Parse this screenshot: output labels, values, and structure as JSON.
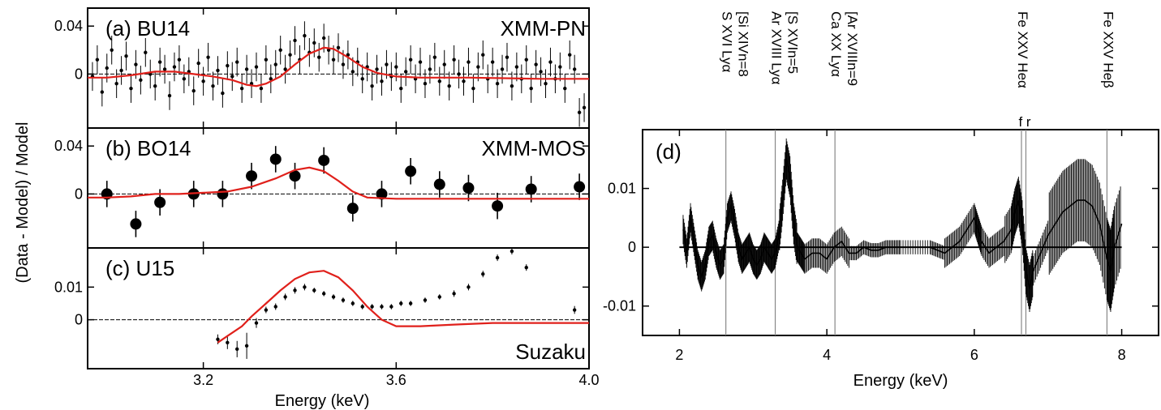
{
  "chart_data": [
    {
      "id": "a",
      "type": "scatter",
      "panel_label": "(a) BU14",
      "instrument": "XMM-PN",
      "ylabel": "(Data - Model) / Model",
      "xlim": [
        2.96,
        4.0
      ],
      "ylim": [
        -0.045,
        0.055
      ],
      "yticks": [
        0,
        0.04
      ],
      "ytick_labels": [
        "0",
        "0.04"
      ],
      "xticks": [
        3.2,
        3.6,
        4.0
      ],
      "points_err": 0.012,
      "points": [
        [
          2.97,
          -0.002
        ],
        [
          2.98,
          0.012
        ],
        [
          2.99,
          -0.015
        ],
        [
          3.0,
          0.005
        ],
        [
          3.01,
          0.02
        ],
        [
          3.02,
          -0.008
        ],
        [
          3.03,
          0.003
        ],
        [
          3.04,
          0.015
        ],
        [
          3.05,
          -0.012
        ],
        [
          3.06,
          0.008
        ],
        [
          3.07,
          -0.005
        ],
        [
          3.08,
          0.018
        ],
        [
          3.09,
          0.0
        ],
        [
          3.1,
          -0.01
        ],
        [
          3.11,
          0.01
        ],
        [
          3.12,
          0.004
        ],
        [
          3.13,
          -0.018
        ],
        [
          3.14,
          0.006
        ],
        [
          3.15,
          0.012
        ],
        [
          3.16,
          -0.004
        ],
        [
          3.17,
          0.002
        ],
        [
          3.18,
          -0.014
        ],
        [
          3.19,
          0.009
        ],
        [
          3.2,
          -0.006
        ],
        [
          3.21,
          0.014
        ],
        [
          3.22,
          -0.01
        ],
        [
          3.23,
          0.003
        ],
        [
          3.24,
          -0.016
        ],
        [
          3.25,
          0.007
        ],
        [
          3.26,
          -0.002
        ],
        [
          3.27,
          0.01
        ],
        [
          3.28,
          -0.012
        ],
        [
          3.29,
          0.004
        ],
        [
          3.3,
          -0.008
        ],
        [
          3.31,
          0.006
        ],
        [
          3.32,
          -0.012
        ],
        [
          3.33,
          0.012
        ],
        [
          3.34,
          -0.004
        ],
        [
          3.35,
          0.008
        ],
        [
          3.36,
          0.02
        ],
        [
          3.37,
          0.004
        ],
        [
          3.38,
          0.016
        ],
        [
          3.39,
          0.028
        ],
        [
          3.4,
          0.012
        ],
        [
          3.41,
          0.032
        ],
        [
          3.42,
          0.018
        ],
        [
          3.43,
          0.026
        ],
        [
          3.44,
          0.014
        ],
        [
          3.45,
          0.03
        ],
        [
          3.46,
          0.02
        ],
        [
          3.47,
          0.012
        ],
        [
          3.48,
          0.022
        ],
        [
          3.49,
          0.008
        ],
        [
          3.5,
          0.016
        ],
        [
          3.51,
          0.002
        ],
        [
          3.52,
          0.01
        ],
        [
          3.53,
          -0.004
        ],
        [
          3.54,
          0.006
        ],
        [
          3.55,
          -0.01
        ],
        [
          3.56,
          0.004
        ],
        [
          3.57,
          -0.006
        ],
        [
          3.58,
          0.008
        ],
        [
          3.59,
          -0.002
        ],
        [
          3.6,
          0.006
        ],
        [
          3.61,
          -0.012
        ],
        [
          3.62,
          0.002
        ],
        [
          3.63,
          0.012
        ],
        [
          3.64,
          -0.004
        ],
        [
          3.65,
          0.01
        ],
        [
          3.66,
          -0.008
        ],
        [
          3.67,
          0.004
        ],
        [
          3.68,
          0.014
        ],
        [
          3.69,
          -0.006
        ],
        [
          3.7,
          0.008
        ],
        [
          3.71,
          -0.01
        ],
        [
          3.72,
          0.012
        ],
        [
          3.73,
          0.0
        ],
        [
          3.74,
          -0.006
        ],
        [
          3.75,
          0.01
        ],
        [
          3.76,
          -0.012
        ],
        [
          3.77,
          0.006
        ],
        [
          3.78,
          0.016
        ],
        [
          3.79,
          -0.004
        ],
        [
          3.8,
          0.01
        ],
        [
          3.81,
          -0.008
        ],
        [
          3.82,
          0.004
        ],
        [
          3.83,
          0.014
        ],
        [
          3.84,
          -0.01
        ],
        [
          3.85,
          0.006
        ],
        [
          3.86,
          -0.004
        ],
        [
          3.87,
          0.012
        ],
        [
          3.88,
          -0.012
        ],
        [
          3.89,
          0.008
        ],
        [
          3.9,
          0.002
        ],
        [
          3.91,
          -0.008
        ],
        [
          3.92,
          0.01
        ],
        [
          3.93,
          -0.004
        ],
        [
          3.94,
          0.006
        ],
        [
          3.95,
          -0.012
        ],
        [
          3.96,
          0.016
        ],
        [
          3.97,
          0.004
        ],
        [
          3.98,
          -0.032
        ],
        [
          3.99,
          -0.028
        ]
      ],
      "model_curve": [
        [
          2.96,
          -0.003
        ],
        [
          3.0,
          -0.003
        ],
        [
          3.05,
          -0.001
        ],
        [
          3.1,
          0.002
        ],
        [
          3.14,
          0.002
        ],
        [
          3.18,
          0.0
        ],
        [
          3.22,
          -0.002
        ],
        [
          3.26,
          -0.005
        ],
        [
          3.29,
          -0.009
        ],
        [
          3.31,
          -0.01
        ],
        [
          3.33,
          -0.008
        ],
        [
          3.36,
          -0.002
        ],
        [
          3.39,
          0.008
        ],
        [
          3.42,
          0.017
        ],
        [
          3.45,
          0.022
        ],
        [
          3.47,
          0.021
        ],
        [
          3.5,
          0.014
        ],
        [
          3.53,
          0.006
        ],
        [
          3.56,
          0.001
        ],
        [
          3.6,
          -0.002
        ],
        [
          3.65,
          -0.003
        ],
        [
          3.75,
          -0.003
        ],
        [
          3.9,
          -0.004
        ],
        [
          4.0,
          -0.004
        ]
      ]
    },
    {
      "id": "b",
      "type": "scatter",
      "panel_label": "(b) BO14",
      "instrument": "XMM-MOS",
      "xlim": [
        2.96,
        4.0
      ],
      "ylim": [
        -0.045,
        0.055
      ],
      "yticks": [
        0,
        0.04
      ],
      "ytick_labels": [
        "0",
        "0.04"
      ],
      "xticks": [
        3.2,
        3.6,
        4.0
      ],
      "points_err": 0.011,
      "points": [
        [
          3.0,
          0.0
        ],
        [
          3.06,
          -0.025
        ],
        [
          3.11,
          -0.007
        ],
        [
          3.18,
          0.0
        ],
        [
          3.24,
          0.0
        ],
        [
          3.3,
          0.015
        ],
        [
          3.35,
          0.029
        ],
        [
          3.39,
          0.015
        ],
        [
          3.45,
          0.028
        ],
        [
          3.51,
          -0.012
        ],
        [
          3.57,
          0.0
        ],
        [
          3.63,
          0.019
        ],
        [
          3.69,
          0.008
        ],
        [
          3.75,
          0.005
        ],
        [
          3.81,
          -0.01
        ],
        [
          3.88,
          0.004
        ],
        [
          3.98,
          0.006
        ]
      ],
      "model_curve": [
        [
          2.96,
          -0.003
        ],
        [
          3.0,
          -0.003
        ],
        [
          3.05,
          -0.002
        ],
        [
          3.1,
          0.0
        ],
        [
          3.15,
          0.0
        ],
        [
          3.2,
          0.001
        ],
        [
          3.25,
          0.002
        ],
        [
          3.3,
          0.006
        ],
        [
          3.35,
          0.013
        ],
        [
          3.39,
          0.02
        ],
        [
          3.42,
          0.022
        ],
        [
          3.45,
          0.019
        ],
        [
          3.48,
          0.011
        ],
        [
          3.51,
          0.002
        ],
        [
          3.54,
          -0.003
        ],
        [
          3.6,
          -0.004
        ],
        [
          3.7,
          -0.004
        ],
        [
          3.85,
          -0.004
        ],
        [
          4.0,
          -0.004
        ]
      ]
    },
    {
      "id": "c",
      "type": "scatter",
      "panel_label": "(c) U15",
      "instrument": "Suzaku",
      "xlabel": "Energy (keV)",
      "xlim": [
        2.96,
        4.0
      ],
      "ylim": [
        -0.015,
        0.022
      ],
      "yticks": [
        0,
        0.01
      ],
      "ytick_labels": [
        "0",
        "0.01"
      ],
      "xticks": [
        3.2,
        3.6,
        4.0
      ],
      "xtick_labels": [
        "3.2",
        "3.6",
        "4.0"
      ],
      "points_err_scale": 0.3,
      "points": [
        [
          3.23,
          -0.006,
          0.0015
        ],
        [
          3.25,
          -0.007,
          0.002
        ],
        [
          3.27,
          -0.009,
          0.0025
        ],
        [
          3.29,
          -0.008,
          0.004
        ],
        [
          3.31,
          -0.001,
          0.0015
        ],
        [
          3.33,
          0.003,
          0.001
        ],
        [
          3.35,
          0.004,
          0.001
        ],
        [
          3.37,
          0.007,
          0.001
        ],
        [
          3.39,
          0.009,
          0.001
        ],
        [
          3.41,
          0.01,
          0.001
        ],
        [
          3.43,
          0.009,
          0.0008
        ],
        [
          3.45,
          0.008,
          0.0008
        ],
        [
          3.47,
          0.007,
          0.0008
        ],
        [
          3.49,
          0.006,
          0.0008
        ],
        [
          3.51,
          0.005,
          0.0008
        ],
        [
          3.53,
          0.004,
          0.0008
        ],
        [
          3.55,
          0.004,
          0.0008
        ],
        [
          3.57,
          0.004,
          0.0008
        ],
        [
          3.59,
          0.004,
          0.0008
        ],
        [
          3.61,
          0.005,
          0.0008
        ],
        [
          3.63,
          0.005,
          0.0008
        ],
        [
          3.66,
          0.006,
          0.0008
        ],
        [
          3.69,
          0.007,
          0.0008
        ],
        [
          3.72,
          0.008,
          0.001
        ],
        [
          3.75,
          0.01,
          0.001
        ],
        [
          3.78,
          0.014,
          0.001
        ],
        [
          3.81,
          0.019,
          0.001
        ],
        [
          3.84,
          0.021,
          0.001
        ],
        [
          3.87,
          0.016,
          0.001
        ],
        [
          3.97,
          0.003,
          0.0012
        ]
      ],
      "model_curve": [
        [
          3.23,
          -0.007
        ],
        [
          3.25,
          -0.005
        ],
        [
          3.28,
          -0.002
        ],
        [
          3.3,
          0.001
        ],
        [
          3.33,
          0.005
        ],
        [
          3.36,
          0.009
        ],
        [
          3.39,
          0.0125
        ],
        [
          3.42,
          0.0145
        ],
        [
          3.45,
          0.015
        ],
        [
          3.48,
          0.013
        ],
        [
          3.51,
          0.009
        ],
        [
          3.54,
          0.004
        ],
        [
          3.57,
          0.0
        ],
        [
          3.6,
          -0.002
        ],
        [
          3.65,
          -0.002
        ],
        [
          3.72,
          -0.0015
        ],
        [
          3.8,
          -0.001
        ],
        [
          3.9,
          -0.001
        ],
        [
          4.0,
          -0.001
        ]
      ]
    },
    {
      "id": "d",
      "type": "line",
      "panel_label": "(d)",
      "xlabel": "Energy (keV)",
      "xlim": [
        1.5,
        8.5
      ],
      "ylim": [
        -0.015,
        0.02
      ],
      "yticks": [
        -0.01,
        0,
        0.01
      ],
      "ytick_labels": [
        "-0.01",
        "0",
        "0.01"
      ],
      "xticks": [
        2,
        4,
        6,
        8
      ],
      "xtick_labels": [
        "2",
        "4",
        "6",
        "8"
      ],
      "line_markers": [
        {
          "energy": 2.63,
          "label_outer": "S XVI Lyα",
          "label_inner": "[Si XIVn=8"
        },
        {
          "energy": 3.3,
          "label_outer": "Ar XVIII Lyα",
          "label_inner": "[S XVIn=5"
        },
        {
          "energy": 4.11,
          "label_outer": "Ca XX Lyα",
          "label_inner": "[Ar XVIIIn=9"
        },
        {
          "energy": 6.64,
          "label_outer": "Fe XXV Heα",
          "label_sub": "f r"
        },
        {
          "energy": 6.7
        },
        {
          "energy": 7.8,
          "label_outer": "Fe XXV Heβ"
        }
      ],
      "residual_curve": [
        [
          2.05,
          0.003
        ],
        [
          2.1,
          -0.001
        ],
        [
          2.15,
          0.005
        ],
        [
          2.2,
          0.001
        ],
        [
          2.25,
          -0.003
        ],
        [
          2.3,
          -0.005
        ],
        [
          2.35,
          -0.003
        ],
        [
          2.4,
          0.001
        ],
        [
          2.45,
          0.002
        ],
        [
          2.5,
          -0.001
        ],
        [
          2.55,
          -0.003
        ],
        [
          2.6,
          -0.002
        ],
        [
          2.65,
          0.005
        ],
        [
          2.7,
          0.007
        ],
        [
          2.75,
          0.004
        ],
        [
          2.8,
          0.0
        ],
        [
          2.85,
          -0.002
        ],
        [
          2.9,
          -0.001
        ],
        [
          2.95,
          0.0
        ],
        [
          3.0,
          -0.002
        ],
        [
          3.05,
          -0.003
        ],
        [
          3.1,
          -0.002
        ],
        [
          3.15,
          0.0
        ],
        [
          3.2,
          -0.001
        ],
        [
          3.25,
          -0.002
        ],
        [
          3.3,
          -0.001
        ],
        [
          3.35,
          0.002
        ],
        [
          3.4,
          0.008
        ],
        [
          3.45,
          0.015
        ],
        [
          3.5,
          0.012
        ],
        [
          3.55,
          0.004
        ],
        [
          3.6,
          0.0
        ],
        [
          3.65,
          -0.001
        ],
        [
          3.7,
          -0.002
        ],
        [
          3.8,
          -0.001
        ],
        [
          3.9,
          -0.001
        ],
        [
          4.0,
          -0.002
        ],
        [
          4.1,
          0.0
        ],
        [
          4.2,
          0.001
        ],
        [
          4.3,
          -0.001
        ],
        [
          4.4,
          -0.001
        ],
        [
          4.5,
          0.0
        ],
        [
          4.6,
          -0.0005
        ],
        [
          4.7,
          -0.0005
        ],
        [
          4.8,
          0.0
        ],
        [
          4.9,
          0.0
        ],
        [
          5.0,
          0.0
        ],
        [
          5.2,
          0.0
        ],
        [
          5.4,
          0.0
        ],
        [
          5.5,
          -0.0005
        ],
        [
          5.6,
          -0.001
        ],
        [
          5.7,
          0.0
        ],
        [
          5.8,
          0.001
        ],
        [
          5.9,
          0.003
        ],
        [
          6.0,
          0.005
        ],
        [
          6.05,
          0.003
        ],
        [
          6.1,
          0.001
        ],
        [
          6.2,
          -0.001
        ],
        [
          6.3,
          0.0
        ],
        [
          6.4,
          0.001
        ],
        [
          6.5,
          0.003
        ],
        [
          6.55,
          0.006
        ],
        [
          6.6,
          0.008
        ],
        [
          6.65,
          0.004
        ],
        [
          6.7,
          -0.004
        ],
        [
          6.75,
          -0.007
        ],
        [
          6.8,
          -0.004
        ],
        [
          6.9,
          -0.001
        ],
        [
          7.0,
          0.002
        ],
        [
          7.1,
          0.004
        ],
        [
          7.2,
          0.006
        ],
        [
          7.3,
          0.007
        ],
        [
          7.4,
          0.008
        ],
        [
          7.5,
          0.008
        ],
        [
          7.6,
          0.007
        ],
        [
          7.7,
          0.004
        ],
        [
          7.8,
          -0.002
        ],
        [
          7.85,
          -0.004
        ],
        [
          7.9,
          0.0
        ],
        [
          8.0,
          0.004
        ]
      ]
    }
  ],
  "shared_ylabel": "(Data - Model) / Model"
}
